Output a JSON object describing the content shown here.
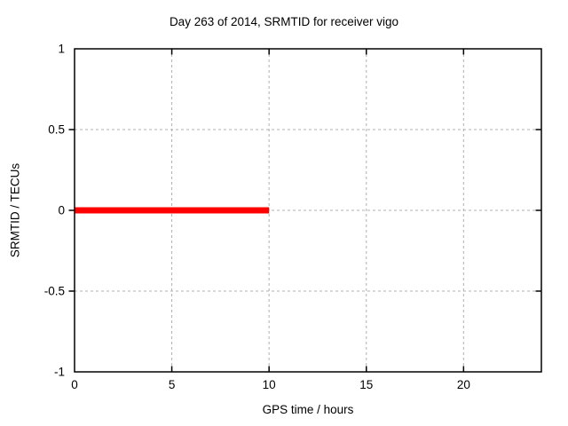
{
  "window": {
    "background": "#ffffff"
  },
  "chart_data": {
    "type": "line",
    "title": "Day 263 of 2014, SRMTID for receiver vigo",
    "xlabel": "GPS time / hours",
    "ylabel": "SRMTID / TECUs",
    "xlim": [
      0,
      24
    ],
    "ylim": [
      -1,
      1
    ],
    "xticks": [
      0,
      5,
      10,
      15,
      20
    ],
    "yticks": [
      -1,
      -0.5,
      0,
      0.5,
      1
    ],
    "grid": true,
    "grid_style": "dashed",
    "legend_position": "none",
    "series": [
      {
        "name": "SRMTID",
        "color": "#ff0000",
        "line_width": 7,
        "x": [
          0,
          10
        ],
        "y": [
          0,
          0
        ]
      }
    ],
    "colors": {
      "axis": "#000000",
      "grid": "#b0b0b0",
      "background": "#ffffff",
      "text": "#000000"
    }
  }
}
